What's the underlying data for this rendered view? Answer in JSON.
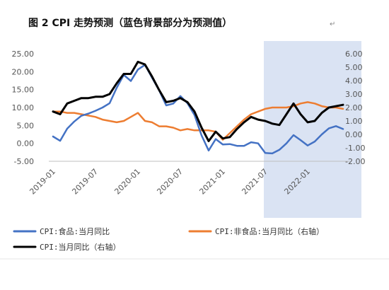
{
  "chart_data": {
    "type": "line",
    "title": "图 2 CPI 走势预测（蓝色背景部分为预测值）",
    "title_mark": "↵",
    "x": [
      "2019-01",
      "2019-02",
      "2019-03",
      "2019-04",
      "2019-05",
      "2019-06",
      "2019-07",
      "2019-08",
      "2019-09",
      "2019-10",
      "2019-11",
      "2019-12",
      "2020-01",
      "2020-02",
      "2020-03",
      "2020-04",
      "2020-05",
      "2020-06",
      "2020-07",
      "2020-08",
      "2020-09",
      "2020-10",
      "2020-11",
      "2020-12",
      "2021-01",
      "2021-02",
      "2021-03",
      "2021-04",
      "2021-05",
      "2021-06",
      "2021-07",
      "2021-08",
      "2021-09",
      "2021-10",
      "2021-11",
      "2021-12",
      "2022-01",
      "2022-02",
      "2022-03",
      "2022-04",
      "2022-05",
      "2022-06"
    ],
    "x_tick_labels": [
      "2019-01",
      "2019-07",
      "2020-01",
      "2020-07",
      "2021-01",
      "2021-07",
      "2022-01"
    ],
    "x_tick_positions": [
      0,
      6,
      12,
      18,
      24,
      30,
      36
    ],
    "forecast_region": {
      "from": "2021-07",
      "to": "2022-06",
      "color": "#dae3f3"
    },
    "ylim_left": [
      -5,
      25
    ],
    "yticks_left": [
      "25.00",
      "20.00",
      "15.00",
      "10.00",
      "5.00",
      "0.00",
      "-5.00"
    ],
    "ylim_right": [
      -2,
      6
    ],
    "yticks_right": [
      "6.00",
      "5.00",
      "4.00",
      "3.00",
      "2.00",
      "1.00",
      "0.00",
      "-1.00",
      "-2.00"
    ],
    "series": [
      {
        "name": "CPI:食品:当月同比",
        "axis": "left",
        "color": "#4472c4",
        "width": 2.5,
        "values": [
          1.9,
          0.7,
          4.1,
          6.1,
          7.7,
          8.3,
          9.1,
          10.0,
          11.2,
          15.5,
          19.1,
          17.4,
          20.6,
          21.9,
          18.3,
          14.8,
          10.6,
          11.1,
          13.2,
          11.2,
          7.9,
          2.2,
          -2.0,
          1.2,
          -0.3,
          -0.2,
          -0.7,
          -0.7,
          0.3,
          -0.0,
          -2.7,
          -2.8,
          -1.8,
          0.0,
          2.3,
          0.9,
          -0.6,
          0.5,
          2.5,
          4.2,
          4.8,
          4.0
        ]
      },
      {
        "name": "CPI:非食品:当月同比（右轴）",
        "axis": "right",
        "color": "#ed7d31",
        "width": 2.5,
        "values": [
          1.7,
          1.7,
          1.6,
          1.6,
          1.5,
          1.4,
          1.3,
          1.1,
          1.0,
          0.9,
          1.0,
          1.3,
          1.6,
          1.0,
          0.9,
          0.6,
          0.6,
          0.5,
          0.3,
          0.4,
          0.3,
          0.3,
          0.3,
          0.2,
          -0.4,
          0.1,
          0.6,
          1.1,
          1.5,
          1.7,
          1.9,
          2.0,
          2.0,
          2.0,
          2.1,
          2.3,
          2.4,
          2.3,
          2.1,
          2.0,
          2.0,
          1.9
        ]
      },
      {
        "name": "CPI:当月同比（右轴）",
        "axis": "right",
        "color": "#000000",
        "width": 3,
        "values": [
          1.7,
          1.5,
          2.3,
          2.5,
          2.7,
          2.7,
          2.8,
          2.8,
          3.0,
          3.8,
          4.5,
          4.5,
          5.4,
          5.2,
          4.3,
          3.3,
          2.4,
          2.5,
          2.7,
          2.4,
          1.7,
          0.5,
          -0.5,
          0.2,
          -0.3,
          -0.2,
          0.4,
          0.9,
          1.3,
          1.1,
          1.0,
          0.8,
          0.7,
          1.5,
          2.3,
          1.5,
          0.9,
          1.0,
          1.6,
          2.0,
          2.1,
          2.2
        ]
      }
    ],
    "legend": {
      "placement": "bottom",
      "items": [
        {
          "label": "CPI:食品:当月同比",
          "color": "#4472c4"
        },
        {
          "label": "CPI:非食品:当月同比（右轴）",
          "color": "#ed7d31"
        },
        {
          "label": "CPI:当月同比（右轴）",
          "color": "#000000"
        }
      ]
    },
    "grid": false
  }
}
